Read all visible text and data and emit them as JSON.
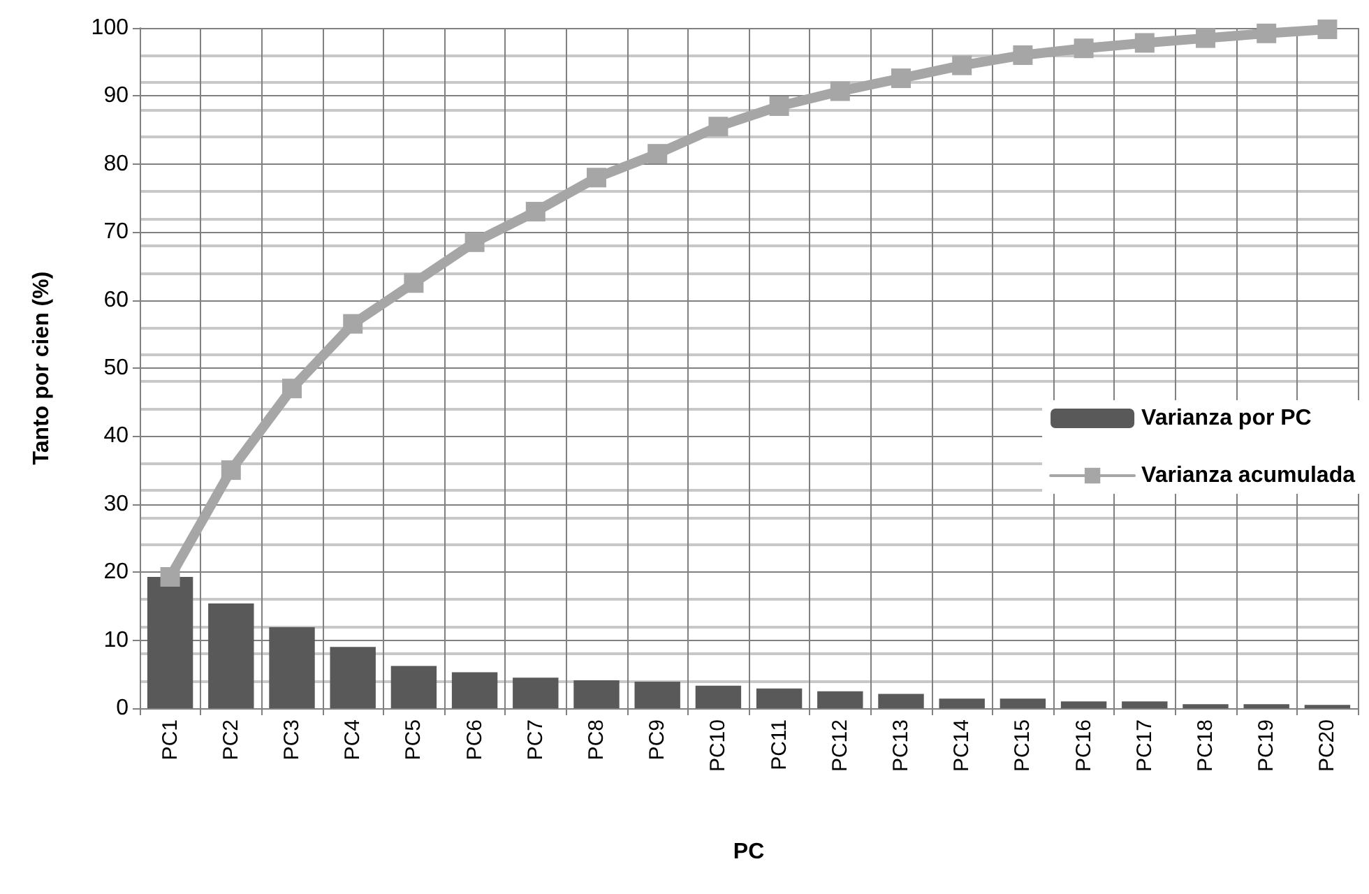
{
  "chart_data": {
    "type": "bar",
    "xlabel": "PC",
    "ylabel": "Tanto por cien (%)",
    "categories": [
      "PC1",
      "PC2",
      "PC3",
      "PC4",
      "PC5",
      "PC6",
      "PC7",
      "PC8",
      "PC9",
      "PC10",
      "PC11",
      "PC12",
      "PC13",
      "PC14",
      "PC15",
      "PC16",
      "PC17",
      "PC18",
      "PC19",
      "PC20"
    ],
    "series": [
      {
        "name": "Varianza por PC",
        "color": "#595959",
        "values": [
          19.3,
          15.4,
          11.9,
          9.0,
          6.2,
          5.3,
          4.5,
          4.1,
          3.9,
          3.3,
          2.9,
          2.5,
          2.1,
          1.4,
          1.4,
          1.0,
          1.0,
          0.6,
          0.6,
          0.5
        ]
      },
      {
        "name": "Varianza acumulada",
        "type": "line",
        "color": "#a6a6a6",
        "marker": "square",
        "values": [
          19.3,
          35,
          47,
          56.5,
          62.5,
          68.5,
          73,
          78,
          81.5,
          85.5,
          88.5,
          90.7,
          92.6,
          94.5,
          96,
          97,
          97.8,
          98.5,
          99.2,
          99.8
        ]
      }
    ],
    "ylim": [
      0,
      100
    ],
    "yticks": [
      0,
      10,
      20,
      30,
      40,
      50,
      60,
      70,
      80,
      90,
      100
    ],
    "grid": true,
    "legend": "right"
  }
}
